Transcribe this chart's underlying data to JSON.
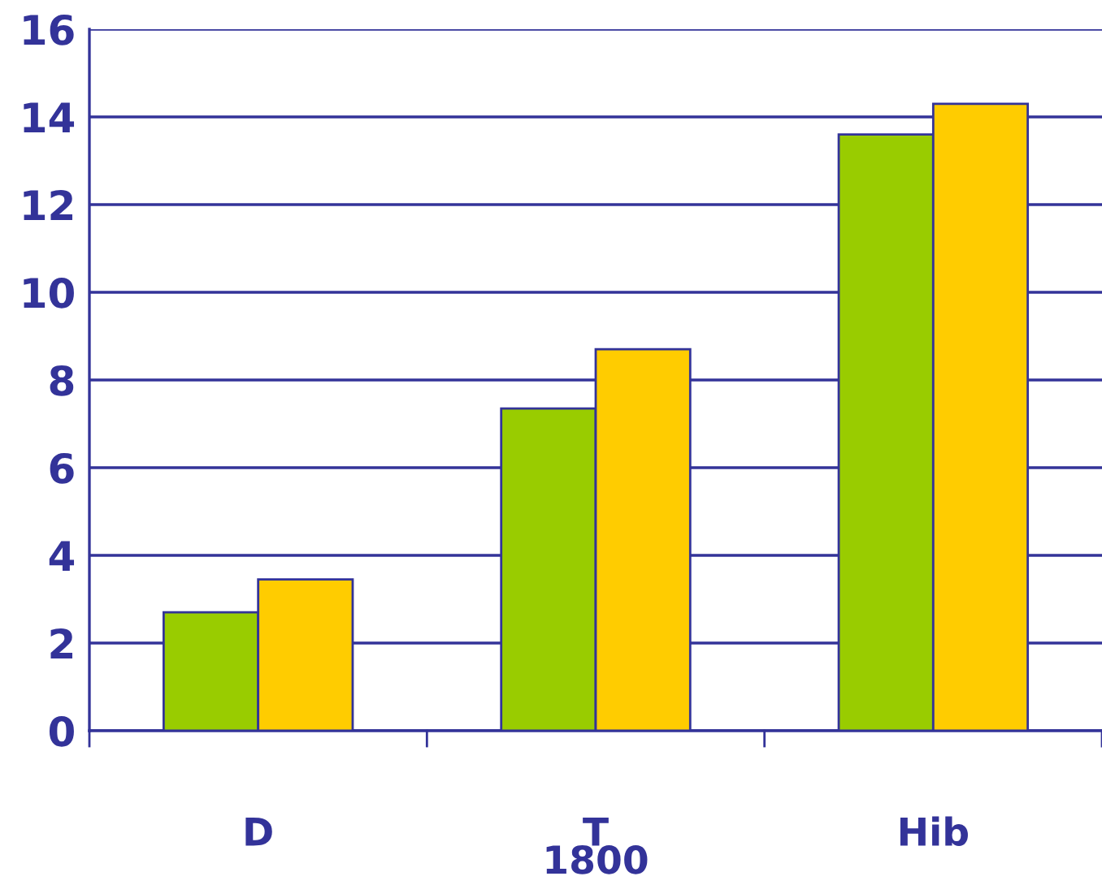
{
  "chart_data": {
    "type": "bar",
    "categories": [
      "D",
      "T",
      "Hib"
    ],
    "series": [
      {
        "color": "#99cc00",
        "values": [
          2.7,
          7.35,
          13.6
        ]
      },
      {
        "color": "#ffcc00",
        "values": [
          3.45,
          8.7,
          14.3
        ]
      }
    ],
    "xlabel": "1800",
    "ylim": [
      0,
      16
    ],
    "yticks": [
      0,
      2,
      4,
      6,
      8,
      10,
      12,
      14,
      16
    ],
    "grid": "y"
  }
}
